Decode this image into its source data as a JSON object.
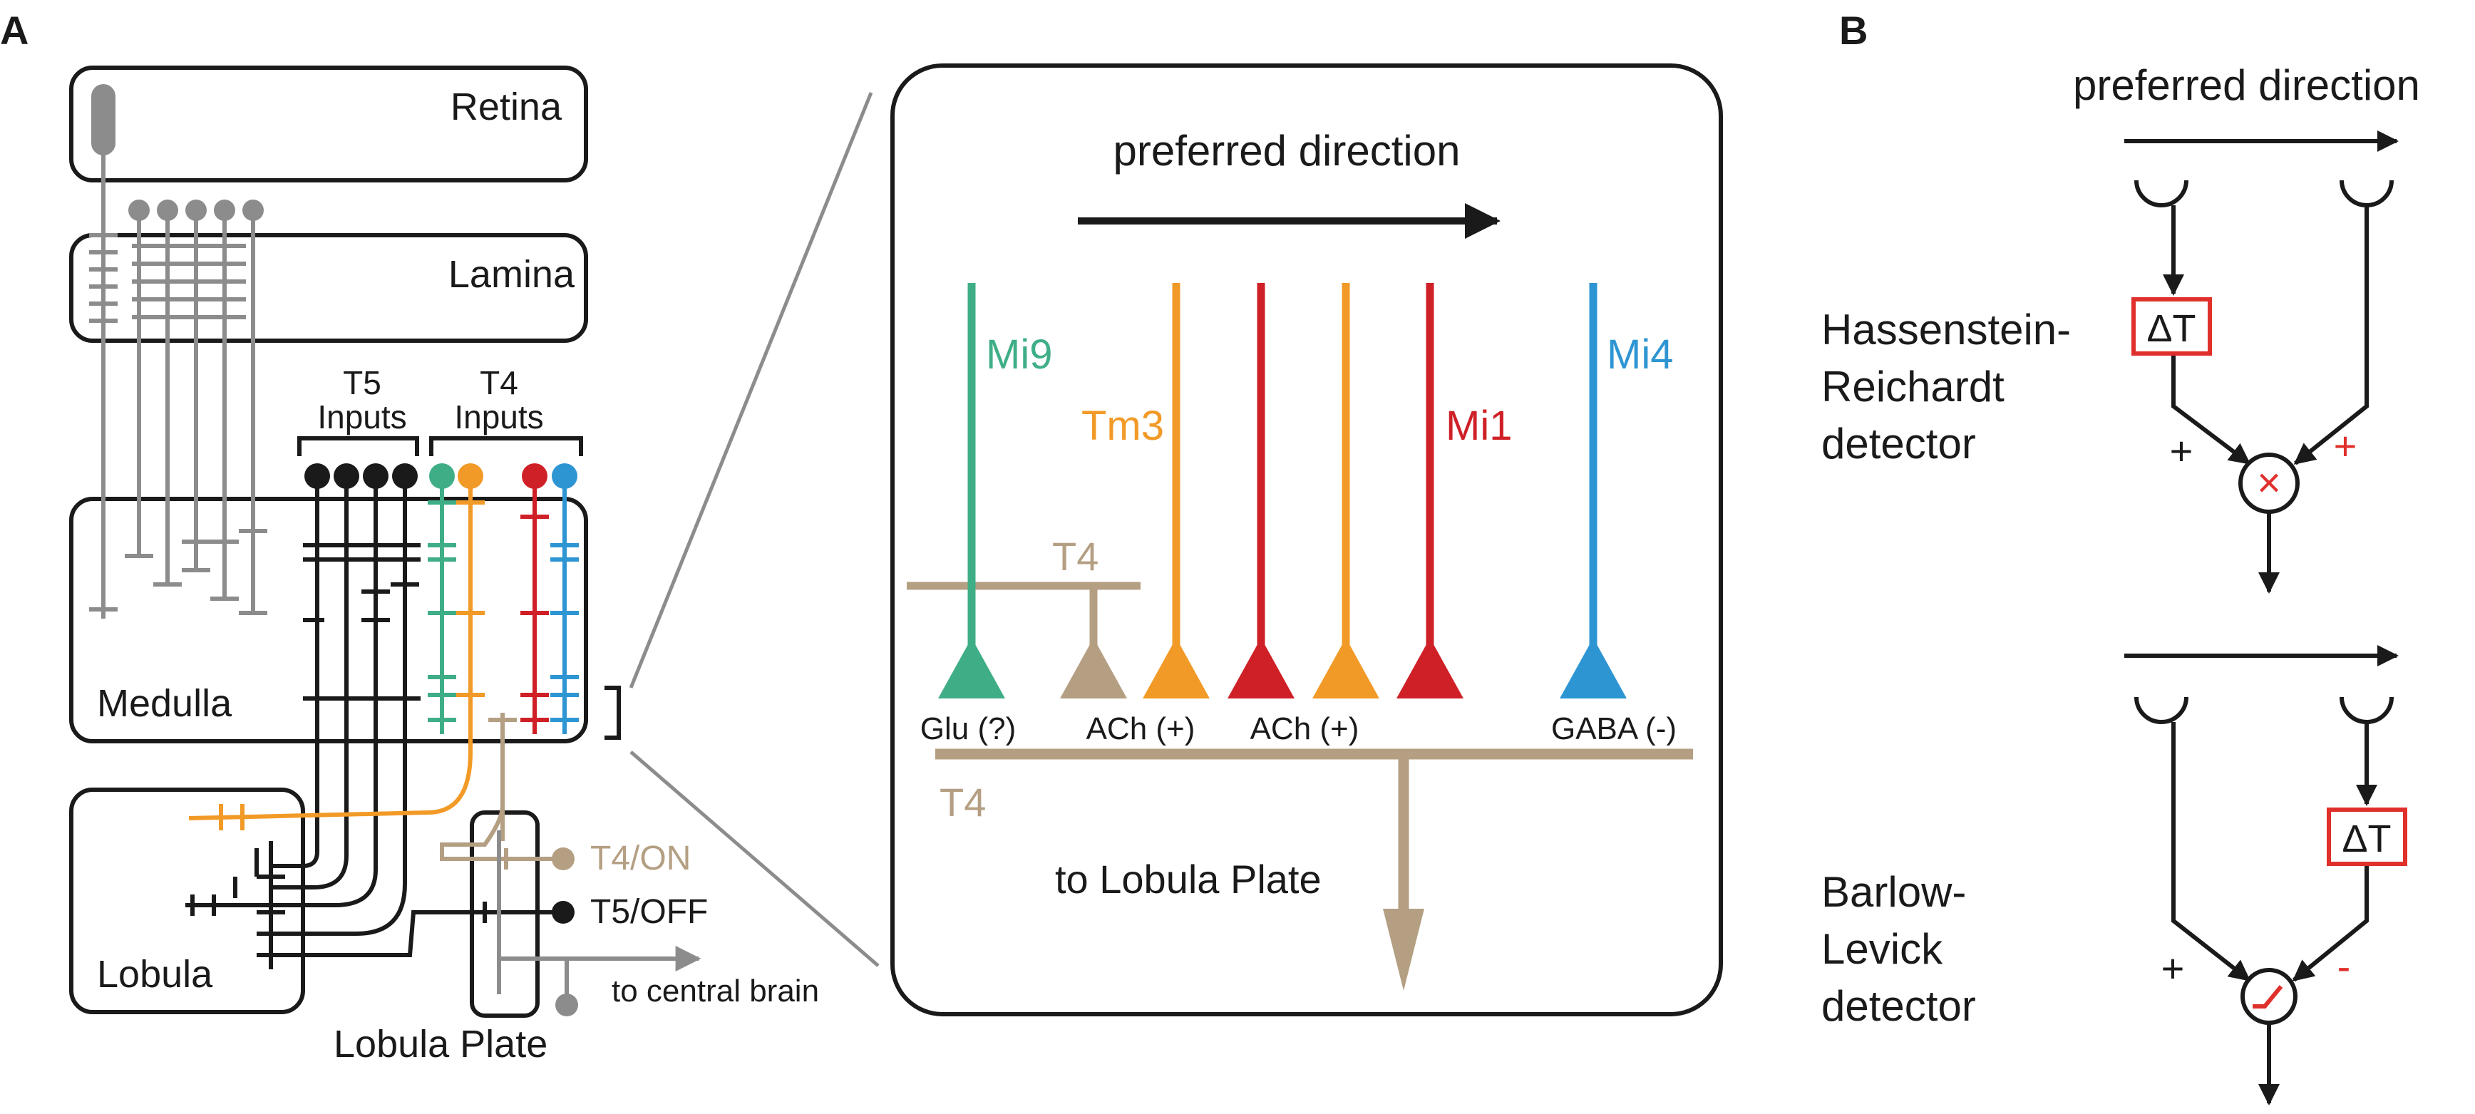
{
  "colors": {
    "black": "#1a1a1a",
    "gray": "#8c8c8c",
    "tan": "#b49f83",
    "green": "#3fae86",
    "orange": "#f29a27",
    "red": "#cf2027",
    "blue": "#2e95d3",
    "accent_red": "#e0302b"
  },
  "panelA": {
    "letter": "A",
    "regions": {
      "retina": "Retina",
      "lamina": "Lamina",
      "medulla": "Medulla",
      "lobula": "Lobula",
      "lobula_plate": "Lobula Plate"
    },
    "inputs": {
      "t5_line1": "T5",
      "t5_line2": "Inputs",
      "t4_line1": "T4",
      "t4_line2": "Inputs"
    },
    "outputs": {
      "t4_on": "T4/ON",
      "t5_off": "T5/OFF",
      "central": "to central brain"
    }
  },
  "zoom": {
    "preferred_direction": "preferred direction",
    "cells": {
      "mi9": "Mi9",
      "tm3": "Tm3",
      "mi1": "Mi1",
      "mi4": "Mi4",
      "t4_upper": "T4",
      "t4_lower": "T4"
    },
    "transmitters": {
      "glu": "Glu (?)",
      "ach1": "ACh (+)",
      "ach2": "ACh (+)",
      "gaba": "GABA (-)"
    },
    "output": "to Lobula Plate"
  },
  "panelB": {
    "letter": "B",
    "preferred_direction": "preferred direction",
    "hr": {
      "line1": "Hassenstein-",
      "line2": "Reichardt",
      "line3": "detector",
      "delay": "ΔT",
      "plus_left": "+",
      "plus_right": "+",
      "operator": "×"
    },
    "bl": {
      "line1": "Barlow-",
      "line2": "Levick",
      "line3": "detector",
      "delay": "ΔT",
      "plus_left": "+",
      "minus_right": "-"
    }
  }
}
